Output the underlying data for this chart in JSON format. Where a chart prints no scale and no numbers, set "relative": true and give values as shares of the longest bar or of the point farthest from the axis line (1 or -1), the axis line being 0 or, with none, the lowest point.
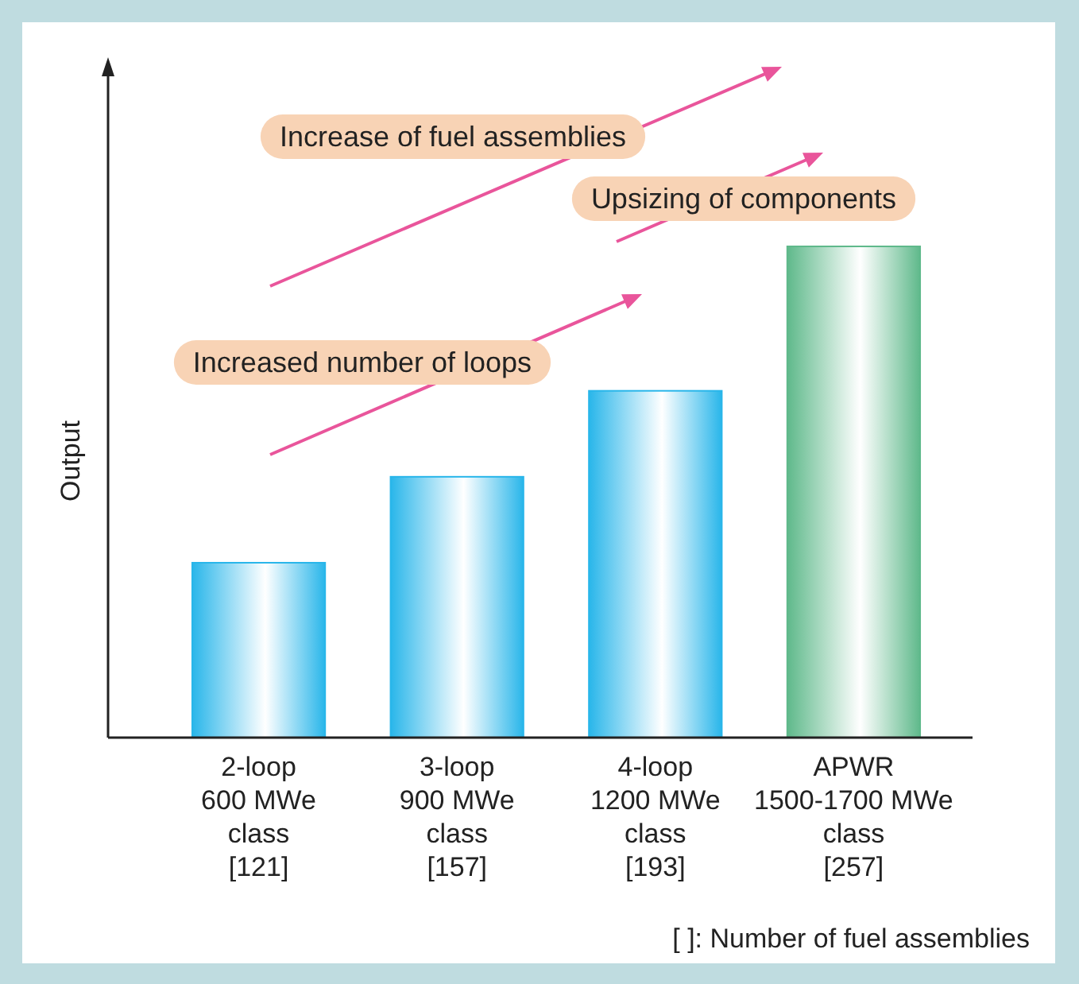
{
  "chart_data": {
    "type": "bar",
    "relative": true,
    "ylabel": "Output",
    "categories": [
      "2-loop\n600 MWe\nclass\n[121]",
      "3-loop\n900 MWe\nclass\n[157]",
      "4-loop\n1200 MWe\nclass\n[193]",
      "APWR\n1500-1700 MWe\nclass\n[257]"
    ],
    "values": [
      0.356,
      0.531,
      0.706,
      1
    ],
    "colors": [
      "#29b6ea",
      "#29b6ea",
      "#29b6ea",
      "#5fb98b"
    ],
    "annotations": [
      "Increase of fuel assemblies",
      "Upsizing of components",
      "Increased number of loops",
      "[ ]: Number of fuel assemblies"
    ],
    "legend": false
  }
}
